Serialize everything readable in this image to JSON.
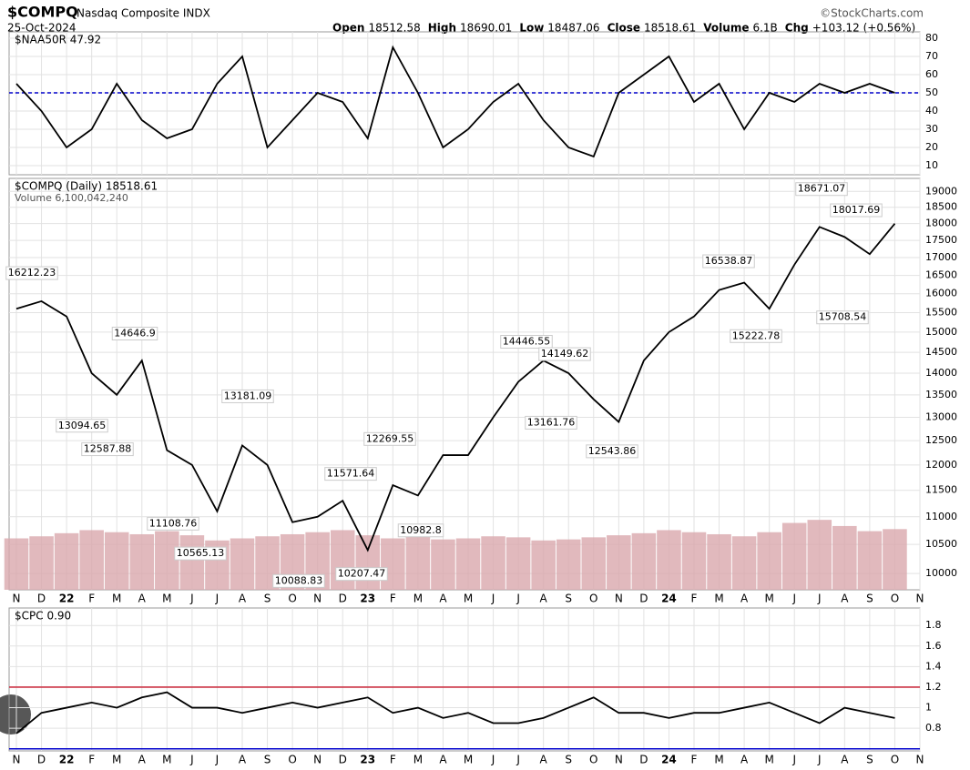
{
  "header": {
    "symbol": "$COMPQ",
    "name": "Nasdaq Composite INDX",
    "source": "©StockCharts.com",
    "date": "25-Oct-2024",
    "quote": [
      {
        "label": "Open",
        "value": "18512.58"
      },
      {
        "label": "High",
        "value": "18690.01"
      },
      {
        "label": "Low",
        "value": "18487.06"
      },
      {
        "label": "Close",
        "value": "18518.61"
      },
      {
        "label": "Volume",
        "value": "6.1B"
      },
      {
        "label": "Chg",
        "value": "+103.12 (+0.56%)"
      }
    ]
  },
  "chart_data": [
    {
      "type": "line",
      "legend": "$NAA50R 47.92",
      "color": "#000000",
      "values": [
        55,
        40,
        20,
        30,
        55,
        35,
        25,
        30,
        55,
        70,
        20,
        35,
        50,
        45,
        25,
        75,
        50,
        20,
        30,
        45,
        55,
        35,
        20,
        15,
        50,
        60,
        70,
        45,
        55,
        30,
        50,
        45,
        55,
        50,
        55,
        50,
        null
      ],
      "ylim": [
        5,
        83.5
      ],
      "yticks": [
        10,
        20,
        30,
        40,
        50,
        60,
        70,
        80
      ],
      "reference_line": {
        "value": 50,
        "color": "#0000cc"
      }
    },
    {
      "type": "line",
      "legend": "$COMPQ (Daily) 18518.61",
      "volume_legend": "Volume 6,100,042,240",
      "color": "#000000",
      "log_scale": true,
      "categories": [
        "N",
        "D",
        "22",
        "F",
        "M",
        "A",
        "M",
        "J",
        "J",
        "A",
        "S",
        "O",
        "N",
        "D",
        "23",
        "F",
        "M",
        "A",
        "M",
        "J",
        "J",
        "A",
        "S",
        "O",
        "N",
        "D",
        "24",
        "F",
        "M",
        "A",
        "M",
        "J",
        "J",
        "A",
        "S",
        "O",
        "N"
      ],
      "values": [
        15600,
        15800,
        15400,
        14000,
        13500,
        14300,
        12300,
        12000,
        11100,
        12400,
        12000,
        10900,
        11000,
        11300,
        10400,
        11600,
        11400,
        12200,
        12200,
        13000,
        13800,
        14300,
        14000,
        13400,
        12900,
        14300,
        15000,
        15400,
        16100,
        16300,
        15600,
        16800,
        17900,
        17600,
        17100,
        18000,
        null
      ],
      "volume": {
        "values": [
          5,
          5.2,
          5.5,
          5.8,
          5.6,
          5.4,
          5.7,
          5.3,
          4.8,
          5,
          5.2,
          5.4,
          5.6,
          5.8,
          5.3,
          5,
          5.5,
          4.9,
          5,
          5.2,
          5.1,
          4.8,
          4.9,
          5.1,
          5.3,
          5.5,
          5.8,
          5.6,
          5.4,
          5.2,
          5.6,
          6.5,
          6.8,
          6.2,
          5.7,
          5.9,
          null
        ],
        "color": "#d9a7ad",
        "ylim": [
          0,
          40
        ]
      },
      "annotations": [
        16212.23,
        13094.65,
        12587.88,
        14646.9,
        11108.76,
        10565.13,
        13181.09,
        10088.83,
        11571.64,
        10207.47,
        12269.55,
        10982.8,
        14446.55,
        14149.62,
        13161.76,
        12543.86,
        16538.87,
        15222.78,
        18671.07,
        18017.69,
        15708.54
      ],
      "ylim": [
        9730,
        19420
      ],
      "yticks": [
        10000,
        10500,
        11000,
        11500,
        12000,
        12500,
        13000,
        13500,
        14000,
        14500,
        15000,
        15500,
        16000,
        16500,
        17000,
        17500,
        18000,
        18500,
        19000
      ]
    },
    {
      "type": "line",
      "legend": "$CPC 0.90",
      "color": "#000000",
      "categories": [
        "N",
        "D",
        "22",
        "F",
        "M",
        "A",
        "M",
        "J",
        "J",
        "A",
        "S",
        "O",
        "N",
        "D",
        "23",
        "F",
        "M",
        "A",
        "M",
        "J",
        "J",
        "A",
        "S",
        "O",
        "N",
        "D",
        "24",
        "F",
        "M",
        "A",
        "M",
        "J",
        "J",
        "A",
        "S",
        "O",
        "N"
      ],
      "values": [
        0.75,
        0.95,
        1.0,
        1.05,
        1.0,
        1.1,
        1.15,
        1.0,
        1.0,
        0.95,
        1.0,
        1.05,
        1.0,
        1.05,
        1.1,
        0.95,
        1.0,
        0.9,
        0.95,
        0.85,
        0.85,
        0.9,
        1.0,
        1.1,
        0.95,
        0.95,
        0.9,
        0.95,
        0.95,
        1.0,
        1.05,
        0.95,
        0.85,
        1.0,
        0.95,
        0.9,
        null
      ],
      "ylim": [
        0.58,
        1.97
      ],
      "yticks": [
        0.8,
        1.0,
        1.2,
        1.4,
        1.6,
        1.8
      ],
      "reference_lines": [
        {
          "value": 1.2,
          "color": "#cc3344"
        },
        {
          "value": 0.6,
          "color": "#0000cc"
        }
      ]
    }
  ]
}
